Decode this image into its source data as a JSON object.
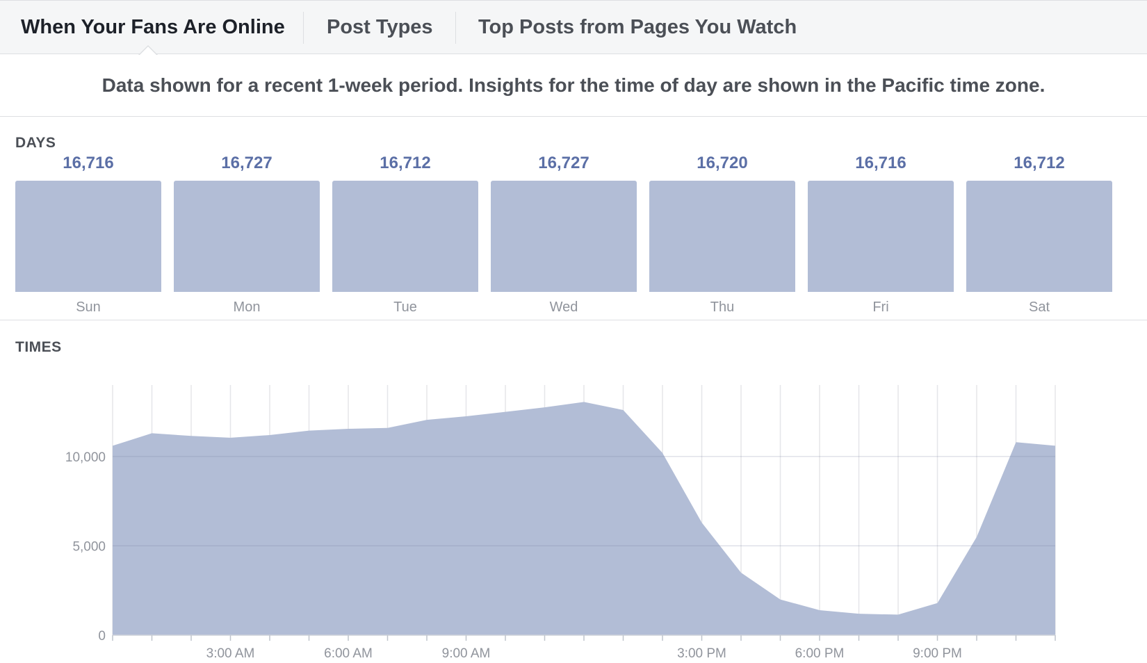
{
  "tabs": [
    {
      "label": "When Your Fans Are Online",
      "active": true
    },
    {
      "label": "Post Types",
      "active": false
    },
    {
      "label": "Top Posts from Pages You Watch",
      "active": false
    }
  ],
  "notice": "Data shown for a recent 1-week period. Insights for the time of day are shown in the Pacific time zone.",
  "days_section": {
    "label": "DAYS"
  },
  "times_section": {
    "label": "TIMES"
  },
  "colors": {
    "bar": "#b2bdd6",
    "value_text": "#5b6fa6",
    "grid": "#e5e6e9",
    "axis_text": "#90949c"
  },
  "chart_data": [
    {
      "type": "bar",
      "categories": [
        "Sun",
        "Mon",
        "Tue",
        "Wed",
        "Thu",
        "Fri",
        "Sat"
      ],
      "values": [
        16716,
        16727,
        16712,
        16727,
        16720,
        16716,
        16712
      ],
      "value_labels": [
        "16,716",
        "16,727",
        "16,712",
        "16,727",
        "16,720",
        "16,716",
        "16,712"
      ]
    },
    {
      "type": "area",
      "x": [
        0,
        1,
        2,
        3,
        4,
        5,
        6,
        7,
        8,
        9,
        10,
        11,
        12,
        13,
        14,
        15,
        16,
        17,
        18,
        19,
        20,
        21,
        22,
        23,
        24
      ],
      "values": [
        10600,
        11300,
        11150,
        11050,
        11200,
        11450,
        11550,
        11600,
        12050,
        12250,
        12500,
        12750,
        13050,
        12600,
        10200,
        6300,
        3500,
        2000,
        1400,
        1200,
        1150,
        1800,
        5500,
        10800,
        10600
      ],
      "ylim": [
        0,
        14000
      ],
      "y_ticks": [
        0,
        5000,
        10000
      ],
      "y_tick_labels": [
        "0",
        "5,000",
        "10,000"
      ],
      "x_ticks": [
        3,
        6,
        9,
        15,
        18,
        21
      ],
      "x_tick_labels": [
        "3:00 AM",
        "6:00 AM",
        "9:00 AM",
        "3:00 PM",
        "6:00 PM",
        "9:00 PM"
      ]
    }
  ]
}
